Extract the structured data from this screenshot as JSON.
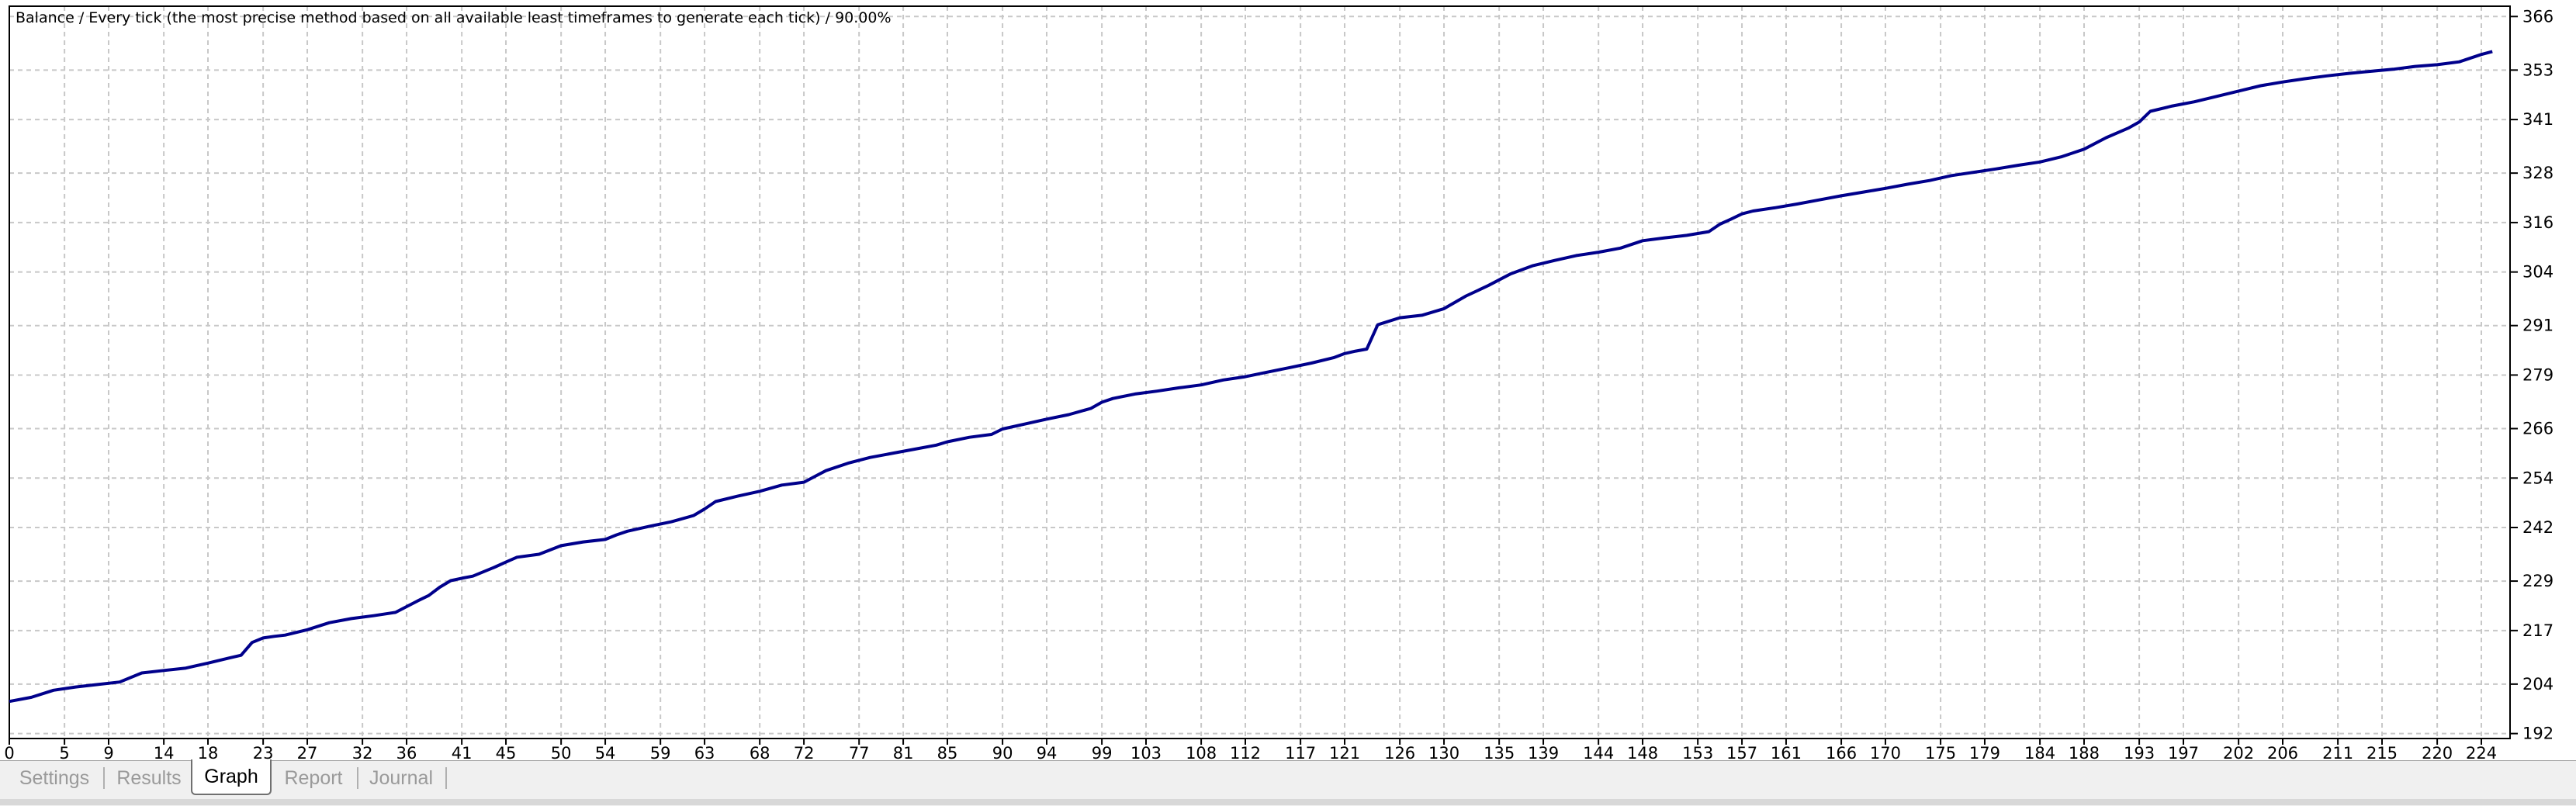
{
  "chart_title": "Balance / Every tick (the most precise method based on all available least timeframes to generate each tick) / 90.00%",
  "tabs": [
    {
      "label": "Settings",
      "active": false
    },
    {
      "label": "Results",
      "active": false
    },
    {
      "label": "Graph",
      "active": true
    },
    {
      "label": "Report",
      "active": false
    },
    {
      "label": "Journal",
      "active": false
    }
  ],
  "colors": {
    "line": "#00008b",
    "grid": "#c8c8c8",
    "axis": "#000000"
  },
  "chart_data": {
    "type": "line",
    "title": "Balance / Every tick (the most precise method based on all available least timeframes to generate each tick) / 90.00%",
    "xlabel": "",
    "ylabel": "",
    "xlim": [
      0,
      226.6
    ],
    "ylim": [
      190.8,
      368.5
    ],
    "grid": true,
    "x_ticks": [
      0,
      5,
      9,
      14,
      18,
      23,
      27,
      32,
      36,
      41,
      45,
      50,
      54,
      59,
      63,
      68,
      72,
      77,
      81,
      85,
      90,
      94,
      99,
      103,
      108,
      112,
      117,
      121,
      126,
      130,
      135,
      139,
      144,
      148,
      153,
      157,
      161,
      166,
      170,
      175,
      179,
      184,
      188,
      193,
      197,
      202,
      206,
      211,
      215,
      220,
      224
    ],
    "y_ticks": [
      192,
      204,
      217,
      229,
      242,
      254,
      266,
      279,
      291,
      304,
      316,
      328,
      341,
      353,
      366
    ],
    "series": [
      {
        "x": [
          0,
          2,
          4,
          6,
          8,
          10,
          12,
          14,
          16,
          18,
          20,
          21,
          22,
          23,
          24,
          25,
          27,
          29,
          31,
          33,
          35,
          36,
          37,
          38,
          39,
          40,
          41,
          42,
          44,
          45,
          46,
          48,
          50,
          52,
          54,
          55,
          56,
          58,
          60,
          62,
          63,
          64,
          66,
          68,
          70,
          72,
          73,
          74,
          76,
          78,
          80,
          82,
          84,
          85,
          87,
          89,
          90,
          92,
          94,
          96,
          98,
          99,
          100,
          102,
          104,
          106,
          108,
          110,
          112,
          114,
          116,
          118,
          120,
          121,
          122,
          123,
          124,
          126,
          128,
          130,
          132,
          134,
          136,
          138,
          140,
          142,
          144,
          146,
          148,
          150,
          152,
          154,
          155,
          156,
          157,
          158,
          160,
          162,
          164,
          166,
          168,
          170,
          172,
          174,
          176,
          178,
          180,
          182,
          184,
          186,
          188,
          190,
          192,
          193,
          194,
          196,
          198,
          200,
          202,
          204,
          206,
          208,
          210,
          212,
          214,
          216,
          218,
          220,
          222,
          224,
          225
        ],
        "y": [
          199.8,
          200.8,
          202.5,
          203.3,
          203.9,
          204.5,
          206.7,
          207.3,
          207.9,
          209.1,
          210.4,
          211.0,
          214.1,
          215.2,
          215.6,
          215.9,
          217.2,
          218.9,
          219.9,
          220.6,
          221.4,
          222.8,
          224.2,
          225.5,
          227.5,
          229.1,
          229.7,
          230.2,
          232.4,
          233.6,
          234.8,
          235.5,
          237.6,
          238.5,
          239.1,
          240.2,
          241.1,
          242.3,
          243.4,
          244.9,
          246.5,
          248.3,
          249.6,
          250.8,
          252.3,
          253.0,
          254.4,
          255.8,
          257.6,
          259.0,
          260.0,
          261.0,
          262.0,
          262.8,
          263.9,
          264.6,
          265.9,
          267.1,
          268.3,
          269.4,
          270.9,
          272.4,
          273.3,
          274.4,
          275.1,
          275.9,
          276.6,
          277.8,
          278.6,
          279.7,
          280.8,
          281.9,
          283.2,
          284.2,
          284.8,
          285.3,
          291.2,
          292.9,
          293.5,
          295.1,
          298.2,
          300.7,
          303.5,
          305.5,
          306.8,
          308.0,
          308.8,
          309.8,
          311.6,
          312.3,
          312.9,
          313.8,
          315.6,
          316.8,
          318.1,
          318.8,
          319.6,
          320.5,
          321.5,
          322.5,
          323.4,
          324.3,
          325.3,
          326.2,
          327.4,
          328.2,
          329.0,
          329.9,
          330.7,
          332.0,
          333.8,
          336.6,
          338.9,
          340.4,
          343.0,
          344.3,
          345.3,
          346.6,
          347.9,
          349.2,
          350.1,
          350.9,
          351.6,
          352.2,
          352.7,
          353.2,
          353.9,
          354.3,
          355.0,
          356.8,
          357.5
        ]
      }
    ]
  }
}
